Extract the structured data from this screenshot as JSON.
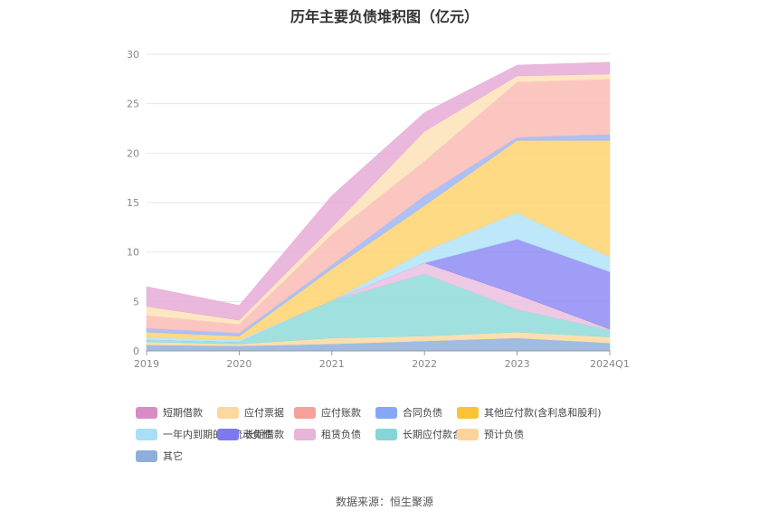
{
  "title": "历年主要负债堆积图（亿元）",
  "source": "数据来源：恒生聚源",
  "chart_data": {
    "type": "area",
    "stacked": true,
    "categories": [
      "2019",
      "2020",
      "2021",
      "2022",
      "2023",
      "2024Q1"
    ],
    "ylim": [
      0,
      30
    ],
    "yticks": [
      0,
      5,
      10,
      15,
      20,
      25,
      30
    ],
    "grid": true,
    "legend_position": "bottom",
    "series": [
      {
        "name": "其它",
        "color": "#8fb0dc",
        "values": [
          0.6,
          0.5,
          0.7,
          1.0,
          1.3,
          0.8
        ]
      },
      {
        "name": "预计负债",
        "color": "#fcd9a3",
        "values": [
          0.3,
          0.2,
          0.6,
          0.5,
          0.6,
          0.6
        ]
      },
      {
        "name": "长期应付款合计",
        "color": "#8fdcd9",
        "values": [
          0.2,
          0.2,
          3.8,
          6.3,
          2.3,
          0.7
        ]
      },
      {
        "name": "租赁负债",
        "color": "#ebbfdf",
        "values": [
          0.0,
          0.0,
          0.0,
          1.1,
          1.5,
          0.1
        ]
      },
      {
        "name": "长期借款",
        "color": "#8e8cf3",
        "values": [
          0.0,
          0.0,
          0.0,
          0.0,
          5.6,
          5.8
        ]
      },
      {
        "name": "一年内到期的非流动负债",
        "color": "#b3e3f8",
        "values": [
          0.3,
          0.2,
          0.0,
          1.2,
          2.7,
          1.5
        ]
      },
      {
        "name": "其他应付款(含利息和股利)",
        "color": "#fed36e",
        "values": [
          0.5,
          0.4,
          3.2,
          4.6,
          7.3,
          11.8
        ]
      },
      {
        "name": "合同负债",
        "color": "#9fb5f6",
        "values": [
          0.4,
          0.3,
          0.4,
          1.0,
          0.3,
          0.6
        ]
      },
      {
        "name": "应付账款",
        "color": "#fbbcb5",
        "values": [
          1.3,
          0.9,
          3.1,
          3.5,
          5.6,
          5.6
        ]
      },
      {
        "name": "应付票据",
        "color": "#fde3b9",
        "values": [
          0.9,
          0.4,
          0.7,
          3.0,
          0.6,
          0.5
        ]
      },
      {
        "name": "短期借款",
        "color": "#e6acd6",
        "values": [
          2.0,
          1.5,
          3.2,
          1.9,
          1.1,
          1.2
        ]
      }
    ],
    "legend_order": [
      "短期借款",
      "应付票据",
      "应付账款",
      "合同负债",
      "其他应付款(含利息和股利)",
      "一年内到期的非流动负债",
      "长期借款",
      "租赁负债",
      "长期应付款合计",
      "预计负债",
      "其它"
    ],
    "legend_swatch_colors": {
      "短期借款": "#d98cc4",
      "应付票据": "#fbd99e",
      "应付账款": "#f7a19b",
      "合同负债": "#86a7f4",
      "其他应付款(含利息和股利)": "#fbc235",
      "一年内到期的非流动负债": "#a9def8",
      "长期借款": "#7d79ef",
      "租赁负债": "#e6b5d8",
      "长期应付款合计": "#85d5d4",
      "预计负债": "#fcd49a",
      "其它": "#8fadda"
    }
  }
}
